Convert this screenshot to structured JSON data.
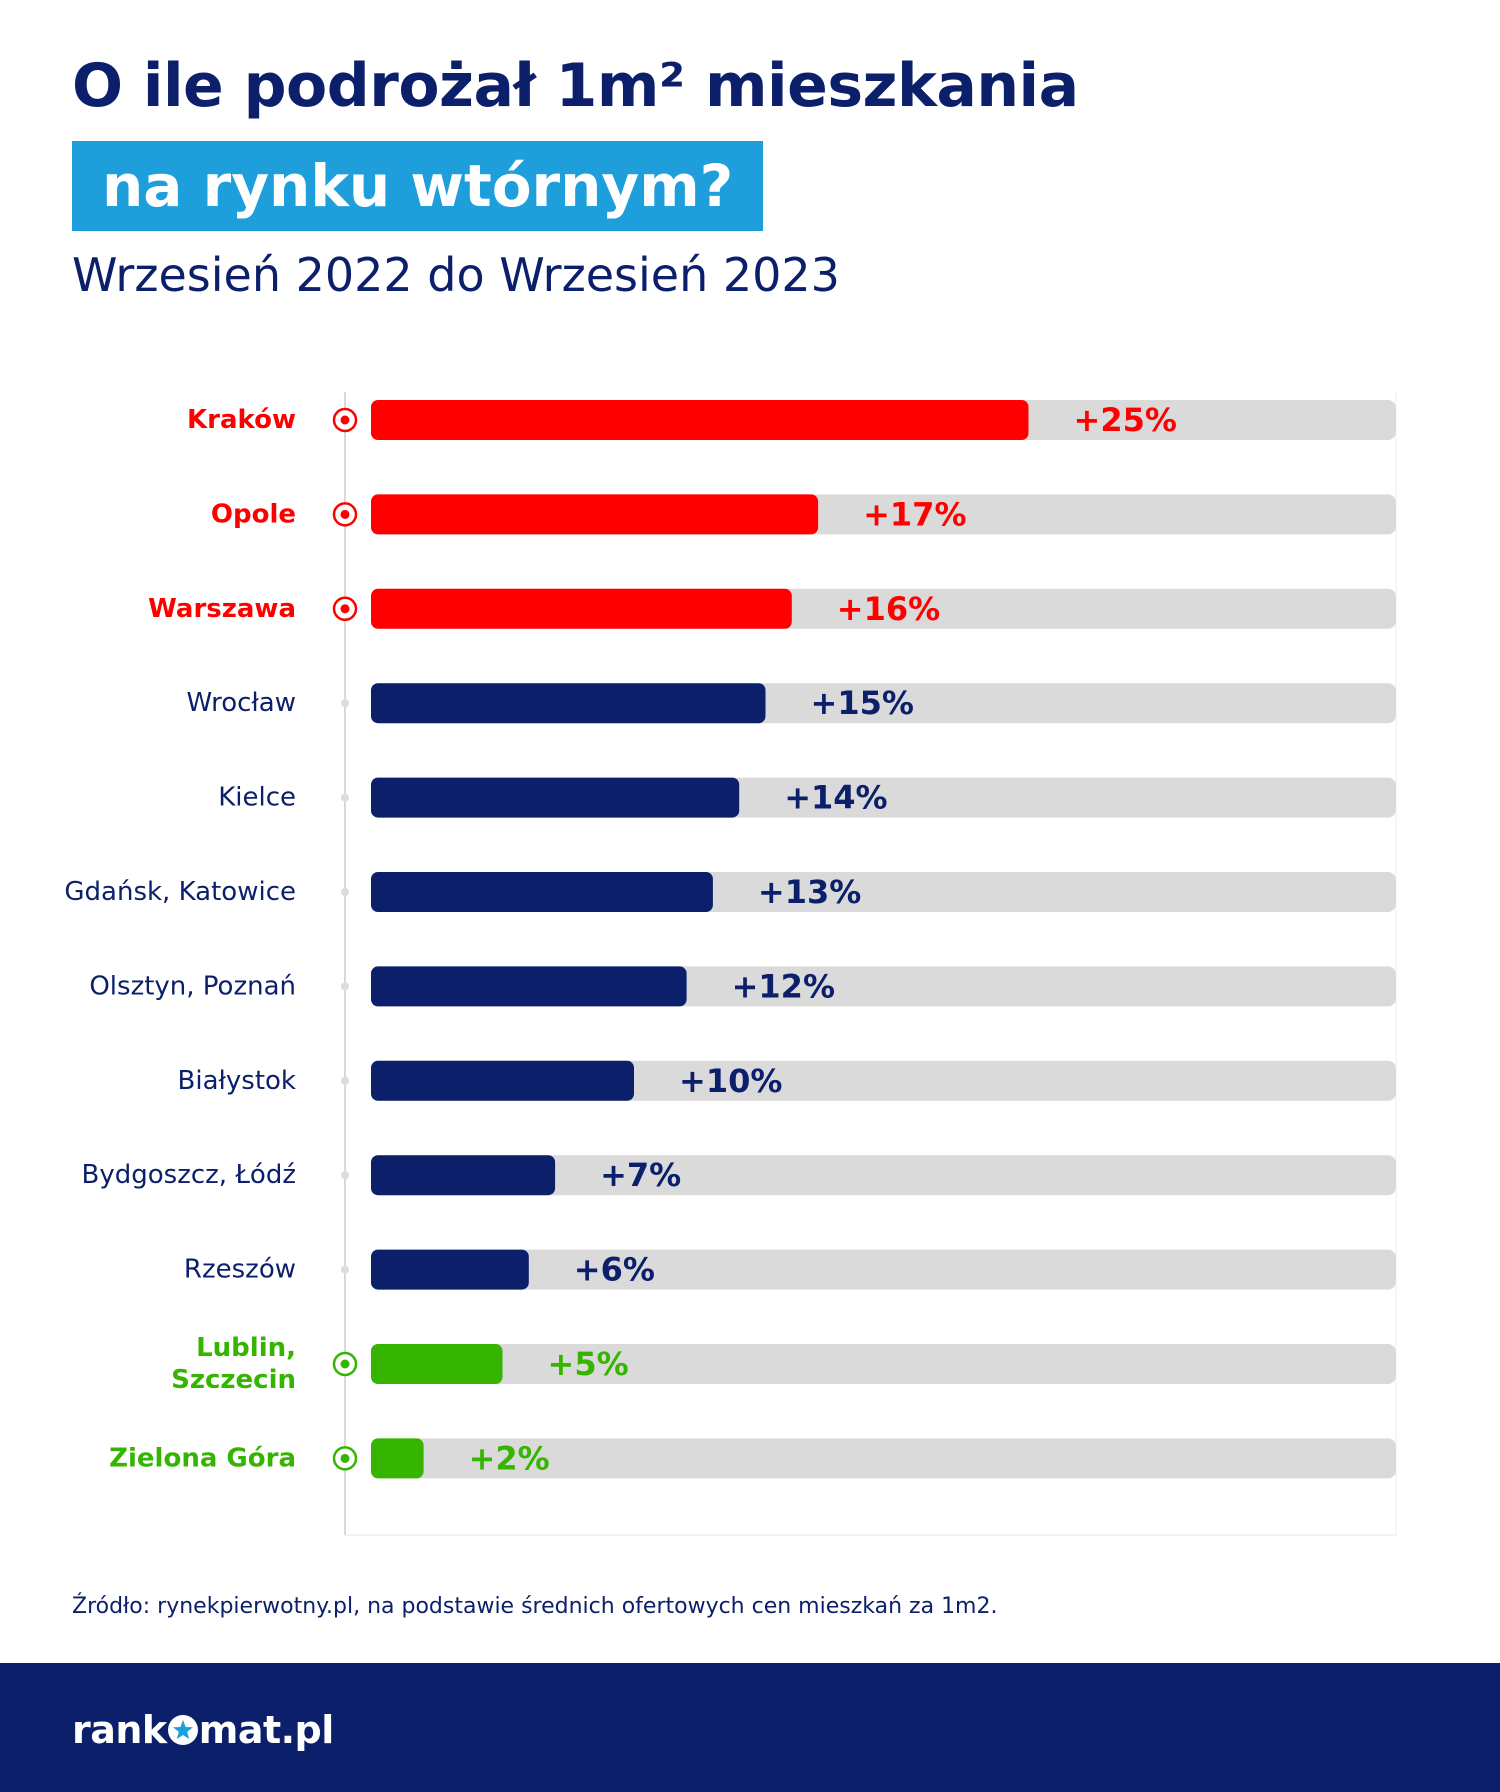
{
  "header": {
    "title": "O ile podrożał 1m² mieszkania",
    "highlight": "na rynku wtórnym?",
    "subtitle": "Wrzesień 2022 do Wrzesień 2023"
  },
  "source": "Źródło: rynekpierwotny.pl, na podstawie średnich ofertowych cen mieszkań za 1m2.",
  "footer": {
    "logo_part1": "rank",
    "logo_part2": "mat.pl",
    "logo_icon": "star-icon"
  },
  "colors": {
    "navy": "#0b1f6b",
    "red": "#ff0000",
    "green": "#35b500",
    "track": "#dadada",
    "highlight_bg": "#1e9fdc"
  },
  "chart_data": {
    "type": "bar",
    "orientation": "horizontal",
    "title": "O ile podrożał 1m² mieszkania na rynku wtórnym?",
    "subtitle": "Wrzesień 2022 do Wrzesień 2023",
    "xlim": [
      0,
      39
    ],
    "grid": false,
    "categories": [
      {
        "label": [
          "Kraków"
        ],
        "value": 25,
        "label_text": "+25%",
        "group": "red"
      },
      {
        "label": [
          "Opole"
        ],
        "value": 17,
        "label_text": "+17%",
        "group": "red"
      },
      {
        "label": [
          "Warszawa"
        ],
        "value": 16,
        "label_text": "+16%",
        "group": "red"
      },
      {
        "label": [
          "Wrocław"
        ],
        "value": 15,
        "label_text": "+15%",
        "group": "navy"
      },
      {
        "label": [
          "Kielce"
        ],
        "value": 14,
        "label_text": "+14%",
        "group": "navy"
      },
      {
        "label": [
          "Gdańsk, Katowice"
        ],
        "value": 13,
        "label_text": "+13%",
        "group": "navy"
      },
      {
        "label": [
          "Olsztyn, Poznań"
        ],
        "value": 12,
        "label_text": "+12%",
        "group": "navy"
      },
      {
        "label": [
          "Białystok"
        ],
        "value": 10,
        "label_text": "+10%",
        "group": "navy"
      },
      {
        "label": [
          "Bydgoszcz, Łódź"
        ],
        "value": 7,
        "label_text": "+7%",
        "group": "navy"
      },
      {
        "label": [
          "Rzeszów"
        ],
        "value": 6,
        "label_text": "+6%",
        "group": "navy"
      },
      {
        "label": [
          "Lublin,",
          "Szczecin"
        ],
        "value": 5,
        "label_text": "+5%",
        "group": "green"
      },
      {
        "label": [
          "Zielona Góra"
        ],
        "value": 2,
        "label_text": "+2%",
        "group": "green"
      }
    ]
  }
}
